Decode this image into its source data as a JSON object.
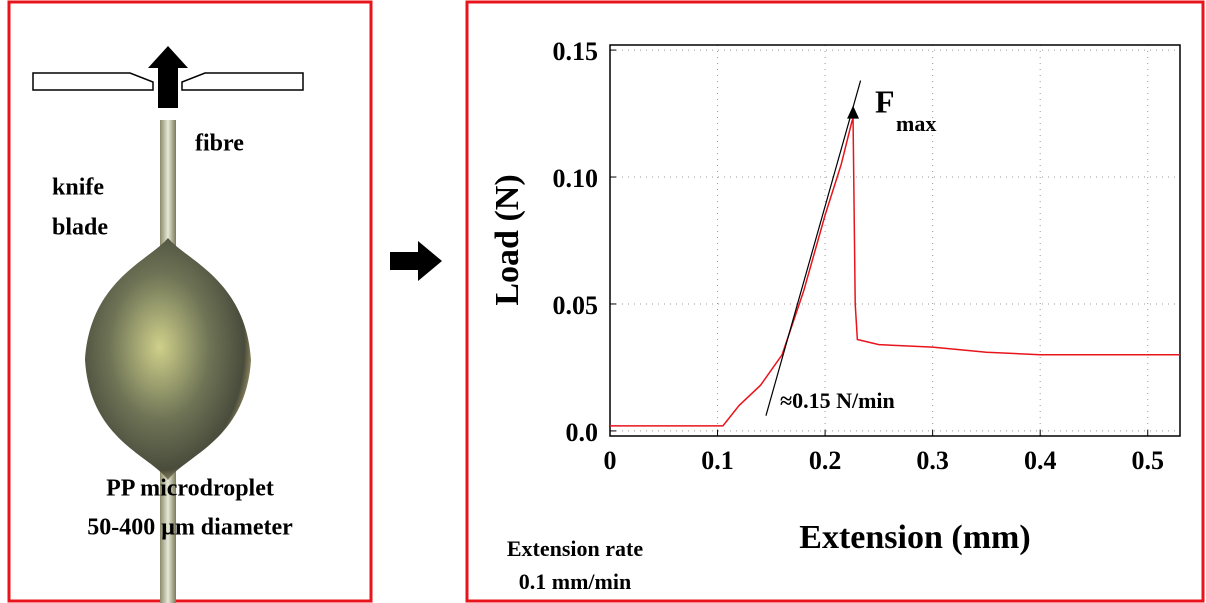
{
  "diagram": {
    "labels": {
      "fibre": "fibre",
      "knife": "knife",
      "blade": "blade",
      "droplet": "PP microdroplet",
      "diameter": "50-400 μm diameter"
    }
  },
  "chart_data": {
    "type": "line",
    "x_label": "Extension (mm)",
    "y_label": "Load (N)",
    "color": "#e8141b",
    "x": [
      0,
      0.05,
      0.1,
      0.105,
      0.12,
      0.14,
      0.16,
      0.18,
      0.2,
      0.215,
      0.225,
      0.226,
      0.228,
      0.23,
      0.25,
      0.3,
      0.35,
      0.4,
      0.45,
      0.53
    ],
    "values": [
      0.002,
      0.002,
      0.002,
      0.002,
      0.01,
      0.018,
      0.03,
      0.055,
      0.085,
      0.105,
      0.122,
      0.123,
      0.05,
      0.036,
      0.034,
      0.033,
      0.031,
      0.03,
      0.03,
      0.03
    ],
    "xlim": [
      0,
      0.53
    ],
    "ylim": [
      -0.002,
      0.152
    ],
    "xticks": [
      0,
      0.1,
      0.2,
      0.3,
      0.4,
      0.5
    ],
    "yticks": [
      {
        "value": 0,
        "label": "0.0"
      },
      0.05,
      {
        "value": 0.1,
        "label": "0.10"
      },
      0.15
    ],
    "grid": true,
    "tangent": {
      "x": [
        0.145,
        0.233
      ],
      "y": [
        0.006,
        0.138
      ]
    },
    "annotations": {
      "fmax": "F",
      "fmax_sub": "max",
      "slope": "≈0.15 N/min",
      "rate_title": "Extension rate",
      "rate_value": "0.1 mm/min"
    }
  }
}
